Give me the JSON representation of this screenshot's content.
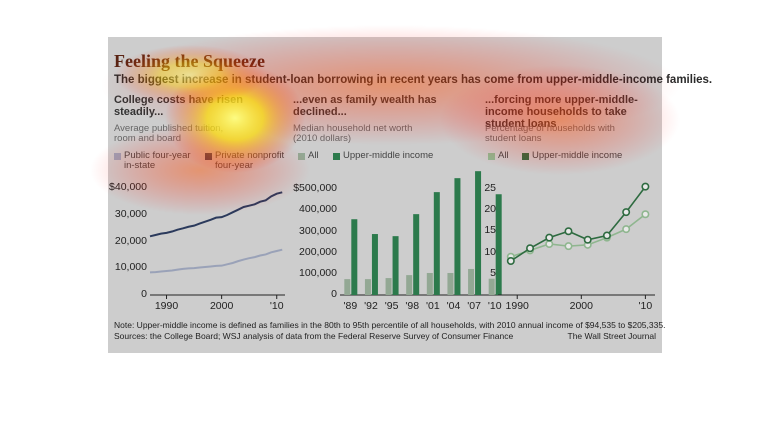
{
  "title": "Feeling the Squeeze",
  "subtitle": "The biggest increase in student-loan borrowing in recent years has come from upper-middle-income families.",
  "note": "Note: Upper-middle income is defined as families in the 80th to 95th percentile of all households, with 2010 annual income of $94,535 to $205,335.",
  "sources": "Sources: the College Board; WSJ analysis of data from the Federal Reserve Survey of Consumer Finance",
  "credit": "The Wall Street Journal",
  "chart_data": [
    {
      "type": "line",
      "header": "College costs have risen steadily...",
      "label": "Average published tuition, room and board",
      "x": [
        1987,
        1988,
        1989,
        1990,
        1991,
        1992,
        1993,
        1994,
        1995,
        1996,
        1997,
        1998,
        1999,
        2000,
        2001,
        2002,
        2003,
        2004,
        2005,
        2006,
        2007,
        2008,
        2009,
        2010,
        2011
      ],
      "series": [
        {
          "name": "Public four-year in-state",
          "color": "#9aa2b8",
          "values": [
            8500,
            8600,
            8800,
            9000,
            9200,
            9500,
            9800,
            10000,
            10100,
            10300,
            10500,
            10700,
            10900,
            11000,
            11500,
            12000,
            12700,
            13300,
            13800,
            14200,
            14800,
            15200,
            16000,
            16500,
            17000
          ]
        },
        {
          "name": "Private nonprofit four-year",
          "color": "#2b3a5c",
          "values": [
            22000,
            22500,
            23000,
            23300,
            23800,
            24500,
            25000,
            25600,
            26000,
            26800,
            27500,
            28200,
            29000,
            29200,
            30000,
            31000,
            32000,
            33000,
            33500,
            34000,
            35000,
            35500,
            37000,
            38000,
            38500
          ]
        }
      ],
      "xlim": [
        1987,
        2011.5
      ],
      "xticks": [
        1990,
        2000,
        {
          "value": 2010,
          "label": "'10"
        }
      ],
      "ylim": [
        0,
        42000
      ],
      "yticks": [
        0,
        {
          "value": 10000,
          "label": "10,000"
        },
        {
          "value": 20000,
          "label": "20,000"
        },
        {
          "value": 30000,
          "label": "30,000"
        },
        {
          "value": 40000,
          "label": "$40,000"
        }
      ]
    },
    {
      "type": "bar",
      "header": "...even as family wealth has declined...",
      "label": "Median household net worth (2010 dollars)",
      "categories": [
        "'89",
        "'92",
        "'95",
        "'98",
        "'01",
        "'04",
        "'07",
        "'10"
      ],
      "series": [
        {
          "name": "All",
          "color": "#93a894",
          "values": [
            75000,
            75000,
            80000,
            94000,
            104000,
            104000,
            123000,
            77000
          ]
        },
        {
          "name": "Upper-middle income",
          "color": "#2c7a4c",
          "values": [
            358000,
            288000,
            278000,
            382000,
            486000,
            552000,
            585000,
            476000
          ]
        }
      ],
      "ylim": [
        0,
        600000
      ],
      "yticks": [
        0,
        {
          "value": 100000,
          "label": "100,000"
        },
        {
          "value": 200000,
          "label": "200,000"
        },
        {
          "value": 300000,
          "label": "300,000"
        },
        {
          "value": 400000,
          "label": "400,000"
        },
        {
          "value": 500000,
          "label": "$500,000"
        }
      ]
    },
    {
      "type": "line",
      "markers": true,
      "header": "...forcing more upper-middle-income households to take student loans",
      "label": "Percentage of households with student loans",
      "x": [
        1989,
        1992,
        1995,
        1998,
        2001,
        2004,
        2007,
        2010
      ],
      "series": [
        {
          "name": "All",
          "color": "#8fb68f",
          "values": [
            9,
            10.5,
            12,
            11.5,
            11.8,
            13.5,
            15.5,
            19
          ]
        },
        {
          "name": "Upper-middle income",
          "color": "#2e6b40",
          "values": [
            8,
            11,
            13.5,
            15,
            13,
            14,
            19.5,
            25.5
          ]
        }
      ],
      "xlim": [
        1987,
        2011.5
      ],
      "xticks": [
        1990,
        2000,
        {
          "value": 2010,
          "label": "'10"
        }
      ],
      "ylim": [
        0,
        28
      ],
      "yticks": [
        5,
        10,
        15,
        20,
        25
      ]
    }
  ]
}
